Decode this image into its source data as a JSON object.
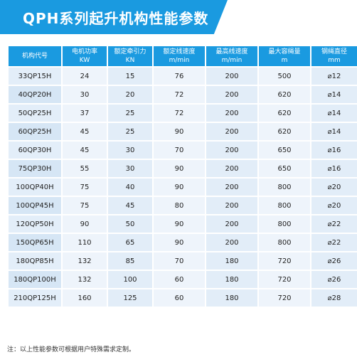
{
  "title": "QPH系列起升机构性能参数",
  "columns": [
    {
      "line1": "机构代号",
      "line2": ""
    },
    {
      "line1": "电机功率",
      "line2": "KW"
    },
    {
      "line1": "额定牵引力",
      "line2": "KN"
    },
    {
      "line1": "额定线速度",
      "line2": "m/min"
    },
    {
      "line1": "最高线速度",
      "line2": "m/min"
    },
    {
      "line1": "最大容绳量",
      "line2": "m"
    },
    {
      "line1": "钢绳直径",
      "line2": "mm"
    }
  ],
  "rows": [
    [
      "33QP15H",
      "24",
      "15",
      "76",
      "200",
      "500",
      "⌀12"
    ],
    [
      "40QP20H",
      "30",
      "20",
      "72",
      "200",
      "620",
      "⌀14"
    ],
    [
      "50QP25H",
      "37",
      "25",
      "72",
      "200",
      "620",
      "⌀14"
    ],
    [
      "60QP25H",
      "45",
      "25",
      "90",
      "200",
      "620",
      "⌀14"
    ],
    [
      "60QP30H",
      "45",
      "30",
      "70",
      "200",
      "650",
      "⌀16"
    ],
    [
      "75QP30H",
      "55",
      "30",
      "90",
      "200",
      "650",
      "⌀16"
    ],
    [
      "100QP40H",
      "75",
      "40",
      "90",
      "200",
      "800",
      "⌀20"
    ],
    [
      "100QP45H",
      "75",
      "45",
      "80",
      "200",
      "800",
      "⌀20"
    ],
    [
      "120QP50H",
      "90",
      "50",
      "90",
      "200",
      "800",
      "⌀22"
    ],
    [
      "150QP65H",
      "110",
      "65",
      "90",
      "200",
      "800",
      "⌀22"
    ],
    [
      "180QP85H",
      "132",
      "85",
      "70",
      "180",
      "720",
      "⌀26"
    ],
    [
      "180QP100H",
      "132",
      "100",
      "60",
      "180",
      "720",
      "⌀26"
    ],
    [
      "210QP125H",
      "160",
      "125",
      "60",
      "180",
      "720",
      "⌀28"
    ]
  ],
  "note": "注：以上性能参数可根据用户特殊需求定制。",
  "colors": {
    "header_blue": "#1a9ae0",
    "cell_light": "#eef4fb",
    "cell_mid": "#e2edf8"
  }
}
